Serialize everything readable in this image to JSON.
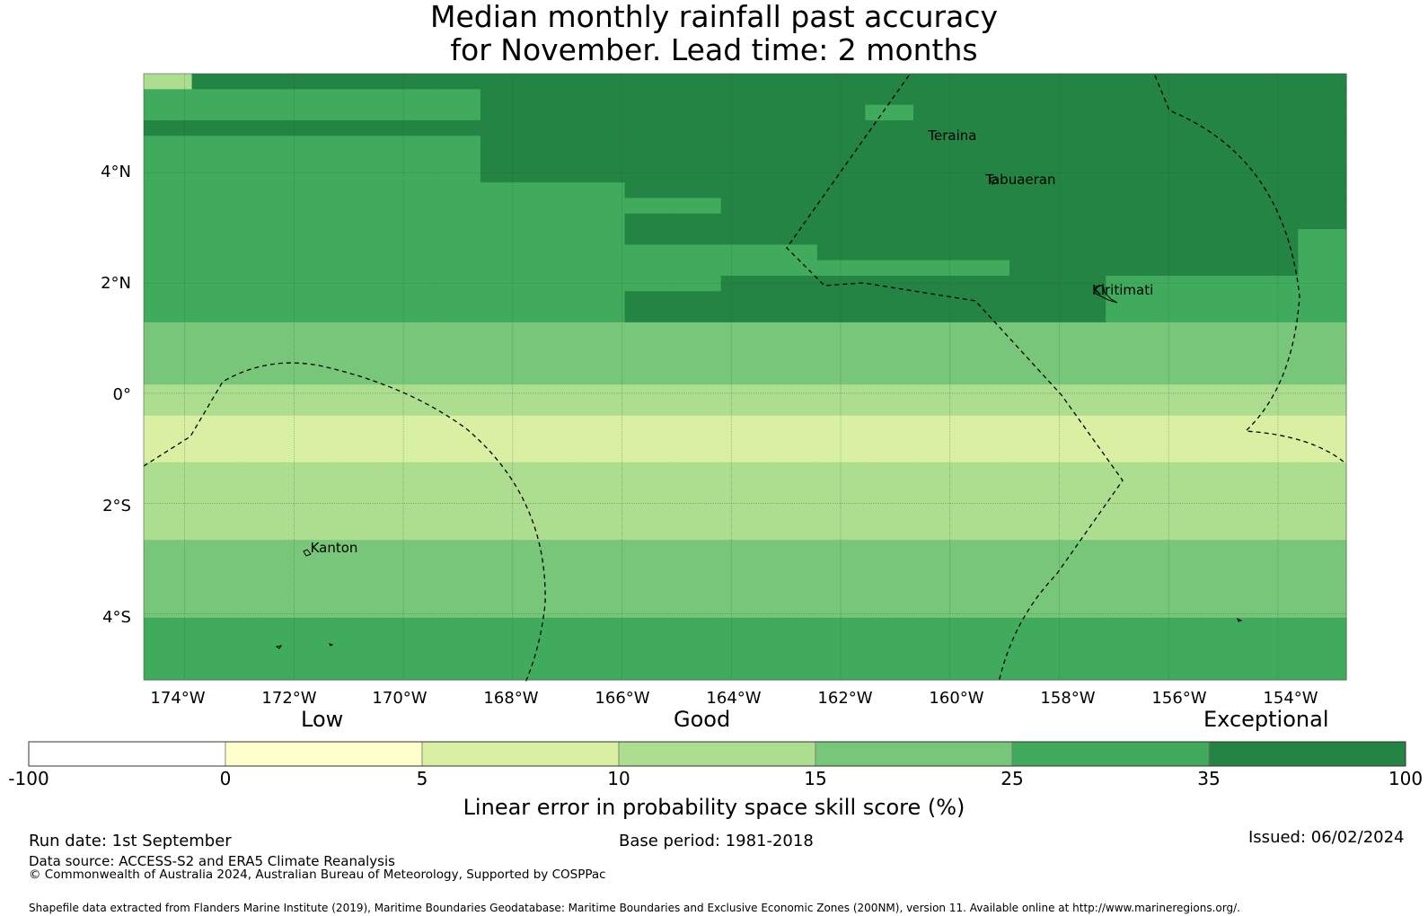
{
  "title_line1": "Median monthly rainfall past accuracy",
  "title_line2": "for November. Lead time: 2 months",
  "map": {
    "lon_range": [
      -174.75,
      -152.75
    ],
    "lat_range": [
      -5.2,
      5.8
    ],
    "x_ticks": [
      "174°W",
      "172°W",
      "170°W",
      "168°W",
      "166°W",
      "164°W",
      "162°W",
      "160°W",
      "158°W",
      "156°W",
      "154°W"
    ],
    "y_ticks": [
      "4°N",
      "2°N",
      "0°",
      "2°S",
      "4°S"
    ],
    "places": [
      {
        "name": "Teraina",
        "lon": -160.4,
        "lat": 4.68
      },
      {
        "name": "Tabuaeran",
        "lon": -159.35,
        "lat": 3.87
      },
      {
        "name": "Kiritimati",
        "lon": -157.4,
        "lat": 1.87
      },
      {
        "name": "Kanton",
        "lon": -171.7,
        "lat": -2.81
      }
    ],
    "skill_palette": [
      "#ffffff",
      "#ffffcc",
      "#d9f0a3",
      "#addd8e",
      "#78c679",
      "#41ab5d",
      "#238443"
    ],
    "grid_rows": [
      "3666666666666666666666666",
      "5555555666666666666666666",
      "5555555666666665666666666",
      "6666666666666666666666666",
      "5555555666666666666666666",
      "5555555666666666666666666",
      "5555555666666666666666666",
      "5555555555666666666666666",
      "5555555555556666666666666",
      "5555555555666666666666666",
      "5555555555666666666666665",
      "5555555555555566666666665",
      "5555555555555555556666665",
      "5555555555556666666655555",
      "5555555555666666666655555",
      "5555555555666666666655555",
      "4444444444444444444444444",
      "4444444444444444444444444",
      "4444444444444444444444444",
      "4444444444444444444444444",
      "3333333333333333333333333",
      "3333333333333333333333333",
      "2222222222222222222222222",
      "2222222222222222222222222",
      "2222222222222222222222222",
      "3333333333333333333333333",
      "3333333333333333333333333",
      "3333333333333333333333333",
      "3333333333333333333333333",
      "3333333333333333333333333",
      "4444444444444444444444444",
      "4444444444444444444444444",
      "4444444444444444444444444",
      "4444444444444444444444444",
      "4444444444444444444444444",
      "5555555555555555555555555",
      "5555555555555555555555555",
      "5555555555555555555555555",
      "5555555555555555555555555"
    ]
  },
  "colorbar": {
    "category_labels": [
      "Low",
      "Good",
      "Exceptional"
    ],
    "tick_labels": [
      "-100",
      "0",
      "5",
      "10",
      "15",
      "25",
      "35",
      "100"
    ],
    "label": "Linear error in probability space skill score (%)"
  },
  "footer": {
    "run_date": "Run date: 1st September",
    "base_period": "Base period: 1981-2018",
    "issued": "Issued: 06/02/2024",
    "data_source": "Data source: ACCESS-S2 and ERA5 Climate Reanalysis",
    "copyright": "© Commonwealth of Australia 2024, Australian Bureau of Meteorology, Supported by COSPPac",
    "shapefile": "Shapefile data extracted from Flanders Marine Institute (2019), Maritime Boundaries Geodatabase: Maritime Boundaries and Exclusive Economic Zones (200NM), version 11. Available online at http://www.marineregions.org/."
  }
}
